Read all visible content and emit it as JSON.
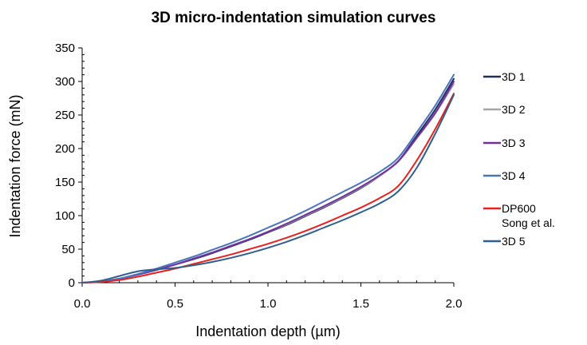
{
  "chart_data": {
    "type": "line",
    "title": "3D micro-indentation simulation curves",
    "xlabel": "Indentation depth (µm)",
    "ylabel": "Indentation force (mN)",
    "xlim": [
      0.0,
      2.0
    ],
    "ylim": [
      0,
      350
    ],
    "x_ticks": [
      0.0,
      0.5,
      1.0,
      1.5,
      2.0
    ],
    "x_tick_labels": [
      "0.0",
      "0.5",
      "1.0",
      "1.5",
      "2.0"
    ],
    "y_ticks": [
      0,
      50,
      100,
      150,
      200,
      250,
      300,
      350
    ],
    "y_tick_labels": [
      "0",
      "50",
      "100",
      "150",
      "200",
      "250",
      "300",
      "350"
    ],
    "grid": false,
    "legend_position": "right",
    "x": [
      0,
      0.1,
      0.2,
      0.3,
      0.4,
      0.5,
      0.6,
      0.7,
      0.8,
      0.9,
      1.0,
      1.1,
      1.2,
      1.3,
      1.4,
      1.5,
      1.6,
      1.7,
      1.8,
      1.9,
      2.0
    ],
    "series": [
      {
        "name": "3D 1",
        "color": "#1f2d5a",
        "values": [
          0,
          2,
          6,
          12,
          19,
          27,
          35,
          44,
          54,
          64,
          75,
          86,
          99,
          112,
          126,
          141,
          159,
          181,
          219,
          258,
          304
        ]
      },
      {
        "name": "3D 2",
        "color": "#a6a6a6",
        "values": [
          0,
          2,
          6,
          12,
          19,
          27,
          36,
          45,
          55,
          65,
          76,
          87,
          100,
          113,
          127,
          142,
          159,
          180,
          215,
          252,
          296
        ]
      },
      {
        "name": "3D 3",
        "color": "#7030a0",
        "values": [
          0,
          2,
          6,
          12,
          19,
          27,
          36,
          45,
          55,
          65,
          76,
          88,
          101,
          114,
          128,
          143,
          160,
          181,
          216,
          253,
          300
        ]
      },
      {
        "name": "3D 4",
        "color": "#4a72c0",
        "values": [
          0,
          2,
          6,
          13,
          21,
          30,
          39,
          49,
          59,
          70,
          82,
          94,
          107,
          121,
          135,
          149,
          165,
          186,
          224,
          264,
          310
        ]
      },
      {
        "name": "DP600\nSong et al.",
        "color": "#e8201e",
        "values": [
          0,
          1,
          4,
          9,
          15,
          21,
          28,
          35,
          42,
          50,
          58,
          67,
          77,
          88,
          100,
          112,
          126,
          144,
          182,
          229,
          282
        ]
      },
      {
        "name": "3D 5",
        "color": "#2f5f8e",
        "values": [
          0,
          3,
          10,
          17,
          20,
          22,
          26,
          31,
          37,
          44,
          52,
          61,
          71,
          82,
          93,
          105,
          118,
          136,
          171,
          222,
          280
        ]
      }
    ]
  }
}
